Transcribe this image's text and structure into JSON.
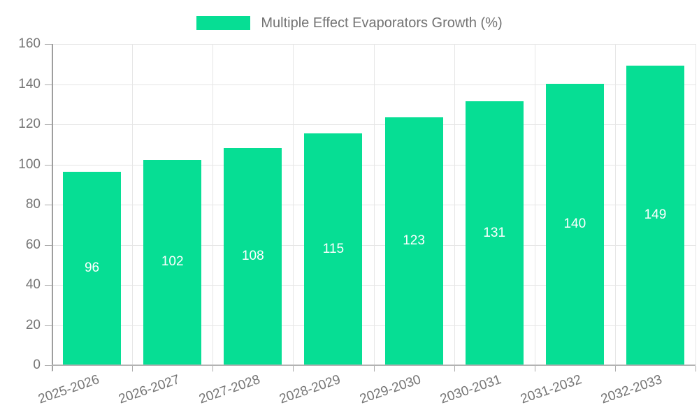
{
  "chart_data": {
    "type": "bar",
    "title": "Multiple Effect Evaporators Growth (%)",
    "categories": [
      "2025-2026",
      "2026-2027",
      "2027-2028",
      "2028-2029",
      "2029-2030",
      "2030-2031",
      "2031-2032",
      "2032-2033"
    ],
    "values": [
      96,
      102,
      108,
      115,
      123,
      131,
      140,
      149
    ],
    "xlabel": "",
    "ylabel": "",
    "ylim": [
      0,
      160
    ],
    "ytick_step": 20,
    "yticks": [
      0,
      20,
      40,
      60,
      80,
      100,
      120,
      140,
      160
    ],
    "grid": true,
    "legend_position": "top",
    "value_labels": "centered-inside-bars",
    "colors": {
      "bar": "#06DE94",
      "value_label": "#ffffff",
      "axis_text": "#757575",
      "legend_text": "#737373",
      "grid_line": "#e6e6e6",
      "axis_line": "#a8a8a8",
      "background": "#ffffff"
    }
  }
}
